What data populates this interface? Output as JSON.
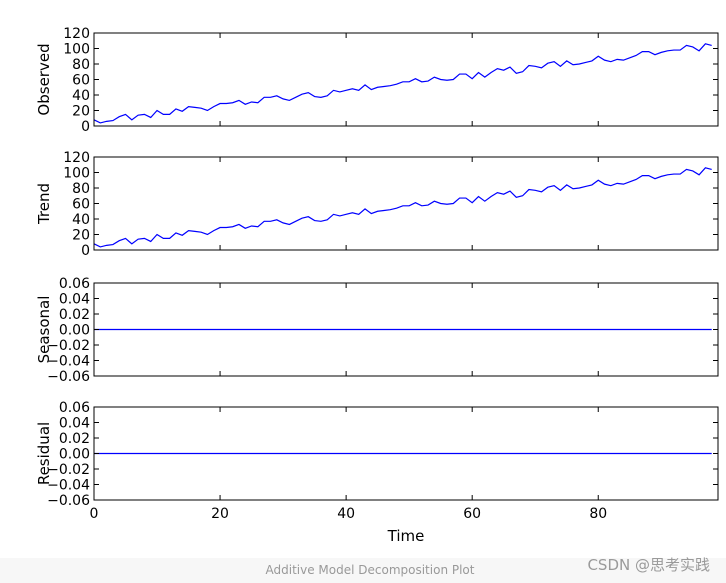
{
  "caption": "Additive Model Decomposition Plot",
  "watermark": "CSDN @思考实践",
  "colors": {
    "line": "#0000ff",
    "axes": "#000000"
  },
  "chart_data": [
    {
      "type": "line",
      "ylabel": "Observed",
      "xlim": [
        0,
        99
      ],
      "ylim": [
        0,
        120
      ],
      "yticks": [
        0,
        20,
        40,
        60,
        80,
        100,
        120
      ],
      "xticks": [
        0,
        20,
        40,
        60,
        80
      ],
      "show_xticklabels": false,
      "x": [
        0,
        1,
        2,
        3,
        4,
        5,
        6,
        7,
        8,
        9,
        10,
        11,
        12,
        13,
        14,
        15,
        16,
        17,
        18,
        19,
        20,
        21,
        22,
        23,
        24,
        25,
        26,
        27,
        28,
        29,
        30,
        31,
        32,
        33,
        34,
        35,
        36,
        37,
        38,
        39,
        40,
        41,
        42,
        43,
        44,
        45,
        46,
        47,
        48,
        49,
        50,
        51,
        52,
        53,
        54,
        55,
        56,
        57,
        58,
        59,
        60,
        61,
        62,
        63,
        64,
        65,
        66,
        67,
        68,
        69,
        70,
        71,
        72,
        73,
        74,
        75,
        76,
        77,
        78,
        79,
        80,
        81,
        82,
        83,
        84,
        85,
        86,
        87,
        88,
        89,
        90,
        91,
        92,
        93,
        94,
        95,
        96,
        97,
        98
      ],
      "values": [
        8,
        4,
        6,
        7,
        12,
        15,
        8,
        14,
        15,
        11,
        20,
        15,
        15,
        22,
        19,
        25,
        24,
        23,
        20,
        25,
        29,
        29,
        30,
        33,
        28,
        31,
        30,
        37,
        37,
        39,
        35,
        33,
        37,
        41,
        43,
        38,
        37,
        39,
        46,
        44,
        46,
        48,
        46,
        53,
        47,
        50,
        51,
        52,
        54,
        57,
        57,
        61,
        57,
        58,
        63,
        60,
        59,
        60,
        67,
        67,
        61,
        69,
        63,
        69,
        74,
        72,
        76,
        68,
        70,
        78,
        77,
        75,
        81,
        83,
        77,
        84,
        79,
        80,
        82,
        84,
        90,
        85,
        83,
        86,
        85,
        88,
        91,
        96,
        96,
        92,
        95,
        97,
        98,
        98,
        104,
        102,
        97,
        106,
        104
      ]
    },
    {
      "type": "line",
      "ylabel": "Trend",
      "xlim": [
        0,
        99
      ],
      "ylim": [
        0,
        120
      ],
      "yticks": [
        0,
        20,
        40,
        60,
        80,
        100,
        120
      ],
      "xticks": [
        0,
        20,
        40,
        60,
        80
      ],
      "show_xticklabels": false,
      "x": [
        0,
        1,
        2,
        3,
        4,
        5,
        6,
        7,
        8,
        9,
        10,
        11,
        12,
        13,
        14,
        15,
        16,
        17,
        18,
        19,
        20,
        21,
        22,
        23,
        24,
        25,
        26,
        27,
        28,
        29,
        30,
        31,
        32,
        33,
        34,
        35,
        36,
        37,
        38,
        39,
        40,
        41,
        42,
        43,
        44,
        45,
        46,
        47,
        48,
        49,
        50,
        51,
        52,
        53,
        54,
        55,
        56,
        57,
        58,
        59,
        60,
        61,
        62,
        63,
        64,
        65,
        66,
        67,
        68,
        69,
        70,
        71,
        72,
        73,
        74,
        75,
        76,
        77,
        78,
        79,
        80,
        81,
        82,
        83,
        84,
        85,
        86,
        87,
        88,
        89,
        90,
        91,
        92,
        93,
        94,
        95,
        96,
        97,
        98
      ],
      "values": [
        8,
        4,
        6,
        7,
        12,
        15,
        8,
        14,
        15,
        11,
        20,
        15,
        15,
        22,
        19,
        25,
        24,
        23,
        20,
        25,
        29,
        29,
        30,
        33,
        28,
        31,
        30,
        37,
        37,
        39,
        35,
        33,
        37,
        41,
        43,
        38,
        37,
        39,
        46,
        44,
        46,
        48,
        46,
        53,
        47,
        50,
        51,
        52,
        54,
        57,
        57,
        61,
        57,
        58,
        63,
        60,
        59,
        60,
        67,
        67,
        61,
        69,
        63,
        69,
        74,
        72,
        76,
        68,
        70,
        78,
        77,
        75,
        81,
        83,
        77,
        84,
        79,
        80,
        82,
        84,
        90,
        85,
        83,
        86,
        85,
        88,
        91,
        96,
        96,
        92,
        95,
        97,
        98,
        98,
        104,
        102,
        97,
        106,
        104
      ]
    },
    {
      "type": "line",
      "ylabel": "Seasonal",
      "xlim": [
        0,
        99
      ],
      "ylim": [
        -0.06,
        0.06
      ],
      "yticks": [
        -0.06,
        -0.04,
        -0.02,
        0.0,
        0.02,
        0.04,
        0.06
      ],
      "xticks": [
        0,
        20,
        40,
        60,
        80
      ],
      "show_xticklabels": false,
      "x": [
        0,
        98
      ],
      "values": [
        0,
        0
      ]
    },
    {
      "type": "line",
      "ylabel": "Residual",
      "xlabel": "Time",
      "xlim": [
        0,
        99
      ],
      "ylim": [
        -0.06,
        0.06
      ],
      "yticks": [
        -0.06,
        -0.04,
        -0.02,
        0.0,
        0.02,
        0.04,
        0.06
      ],
      "xticks": [
        0,
        20,
        40,
        60,
        80
      ],
      "show_xticklabels": true,
      "x": [
        0,
        98
      ],
      "values": [
        0,
        0
      ]
    }
  ]
}
